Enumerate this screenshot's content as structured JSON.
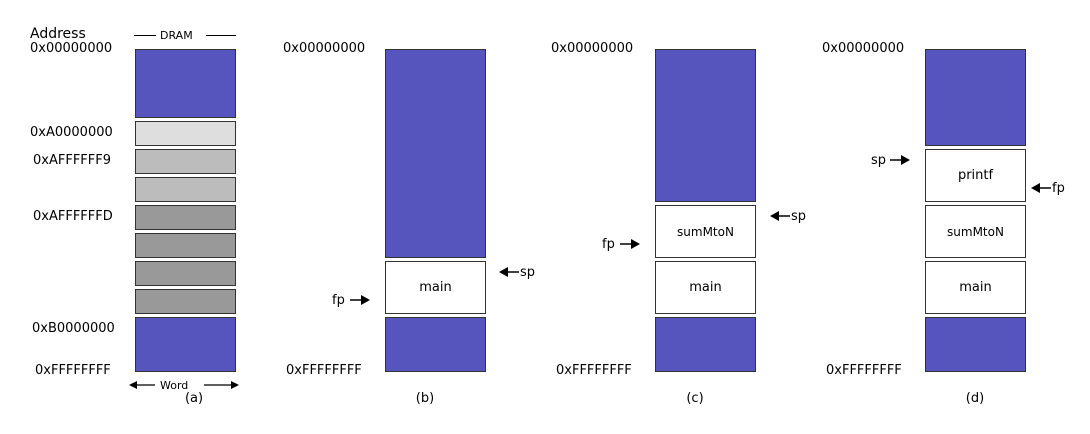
{
  "panel_a": {
    "address_header": "Address",
    "dram_label": "DRAM",
    "word_label": "Word",
    "caption": "(a)",
    "addresses": [
      "0x00000000",
      "0xA0000000",
      "0xAFFFFFF9",
      "0xAFFFFFFD",
      "0xB0000000",
      "0xFFFFFFFF"
    ]
  },
  "panel_b": {
    "top_address": "0x00000000",
    "bottom_address": "0xFFFFFFFF",
    "frame_main": "main",
    "sp_label": "sp",
    "fp_label": "fp",
    "caption": "(b)"
  },
  "panel_c": {
    "top_address": "0x00000000",
    "bottom_address": "0xFFFFFFFF",
    "frame_summtoN": "sumMtoN",
    "frame_main": "main",
    "sp_label": "sp",
    "fp_label": "fp",
    "caption": "(c)"
  },
  "panel_d": {
    "top_address": "0x00000000",
    "bottom_address": "0xFFFFFFFF",
    "frame_printf": "printf",
    "frame_summtoN": "sumMtoN",
    "frame_main": "main",
    "sp_label": "sp",
    "fp_label": "fp",
    "caption": "(d)"
  },
  "colors": {
    "memory_block": "#5655be",
    "word_light": "#dedede",
    "word_mid": "#bcbcbc",
    "word_dark": "#999999",
    "frame": "#ffffff"
  }
}
